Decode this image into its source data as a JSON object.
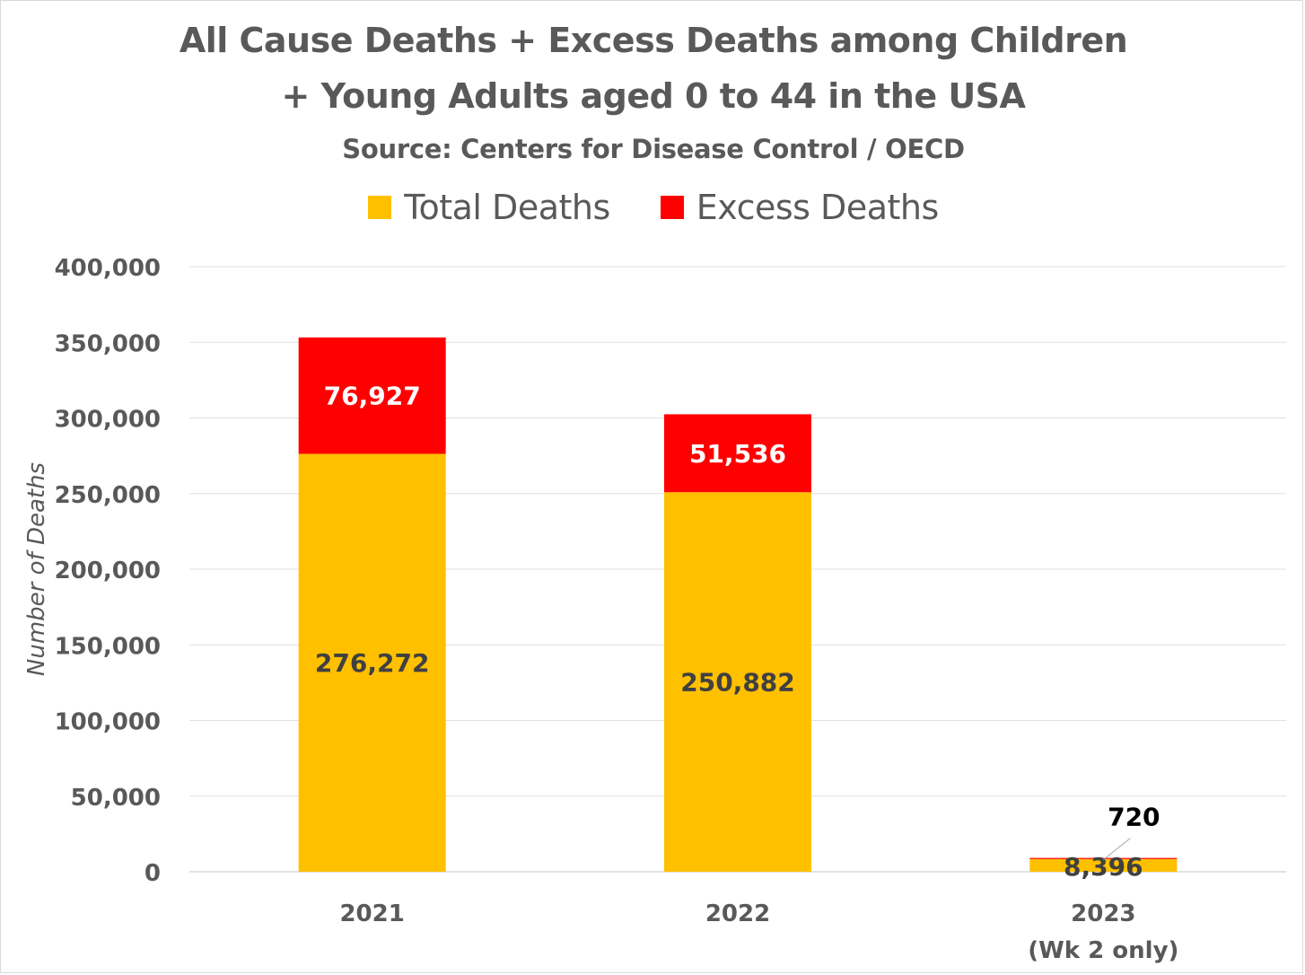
{
  "chart_data": {
    "type": "bar",
    "stacked": true,
    "title": "All Cause Deaths + Excess Deaths among Children",
    "title_line2": "+ Young Adults aged 0 to 44 in the USA",
    "subtitle": "Source: Centers for Disease Control / OECD",
    "ylabel": "Number of Deaths",
    "xlabel": "",
    "categories": [
      "2021",
      "2022",
      "2023"
    ],
    "category_sublabels": [
      "",
      "",
      "(Wk 2 only)"
    ],
    "ylim": [
      0,
      400000
    ],
    "yticks": [
      0,
      50000,
      100000,
      150000,
      200000,
      250000,
      300000,
      350000,
      400000
    ],
    "ytick_labels": [
      "0",
      "50,000",
      "100,000",
      "150,000",
      "200,000",
      "250,000",
      "300,000",
      "350,000",
      "400,000"
    ],
    "grid": true,
    "legend_position": "top",
    "series": [
      {
        "name": "Total Deaths",
        "color": "#ffc000",
        "values": [
          276272,
          250882,
          8396
        ],
        "labels": [
          "276,272",
          "250,882",
          "8,396"
        ],
        "label_color": "#404040"
      },
      {
        "name": "Excess Deaths",
        "color": "#ff0000",
        "values": [
          76927,
          51536,
          720
        ],
        "labels": [
          "76,927",
          "51,536",
          "720"
        ],
        "label_color": "#ffffff"
      }
    ]
  }
}
